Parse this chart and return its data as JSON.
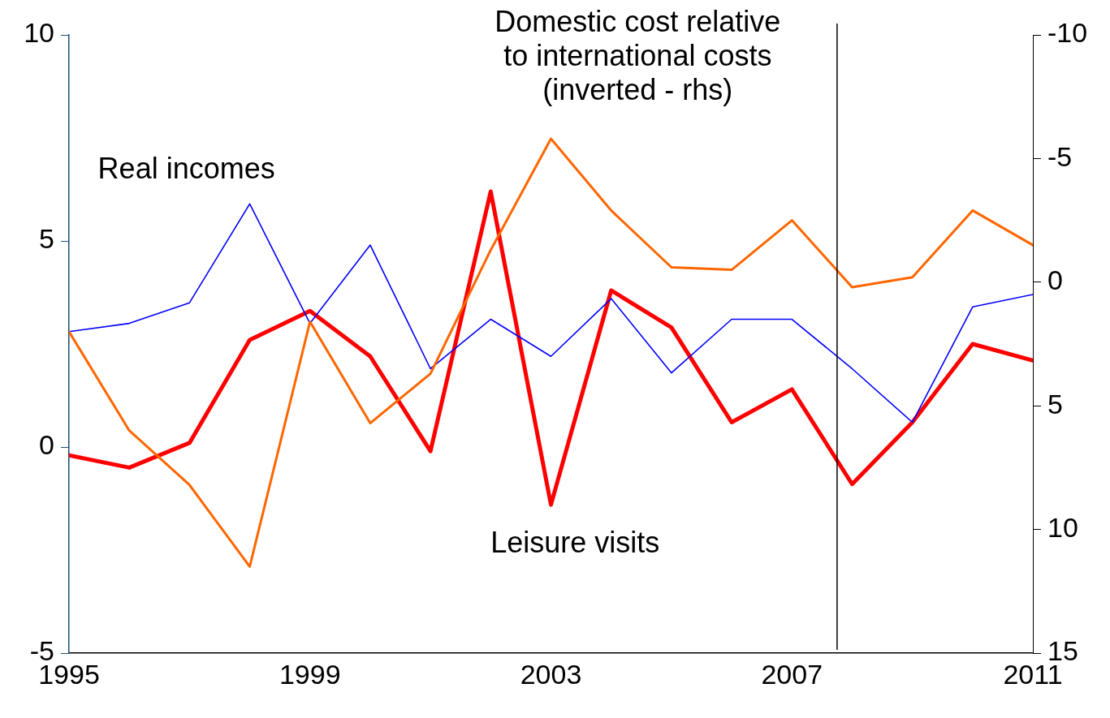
{
  "chart_data": {
    "type": "line",
    "x": [
      1995,
      1996,
      1997,
      1998,
      1999,
      2000,
      2001,
      2002,
      2003,
      2004,
      2005,
      2006,
      2007,
      2008,
      2009,
      2010,
      2011
    ],
    "series": [
      {
        "name": "Leisure visits",
        "color": "#ff0000",
        "values": [
          -0.2,
          -0.5,
          0.1,
          2.6,
          3.3,
          2.2,
          -0.1,
          6.2,
          -1.4,
          3.8,
          2.9,
          0.6,
          1.4,
          -0.9,
          0.6,
          2.5,
          2.1
        ]
      },
      {
        "name": "Real incomes",
        "color": "#0000ff",
        "values": [
          2.8,
          3.0,
          3.5,
          5.9,
          3.0,
          4.9,
          1.9,
          3.1,
          2.2,
          3.6,
          1.8,
          3.1,
          3.1,
          1.9,
          0.6,
          3.4,
          3.7
        ]
      },
      {
        "name": "Domestic cost relative to international costs (inverted - rhs)",
        "color": "#ff6600",
        "axis": "y2",
        "values": [
          2.0,
          6.0,
          8.2,
          11.5,
          1.6,
          5.7,
          3.7,
          -1.3,
          -5.8,
          -2.9,
          -0.6,
          -0.5,
          -2.5,
          0.2,
          -0.2,
          -2.9,
          -1.5
        ]
      }
    ],
    "xlim": [
      1995,
      2011
    ],
    "xticks": [
      1995,
      1999,
      2003,
      2007,
      2011
    ],
    "ylim": [
      -5,
      10
    ],
    "yticks": [
      -5,
      0,
      5,
      10
    ],
    "y2lim": [
      15,
      -10
    ],
    "y2ticks": [
      15,
      10,
      5,
      0,
      -5,
      -10
    ],
    "ref_lines": [
      {
        "axis": "x",
        "value": 2007.75,
        "color": "#000000"
      }
    ],
    "grid": false,
    "legend": false,
    "marker": "none",
    "line_style": "solid"
  }
}
